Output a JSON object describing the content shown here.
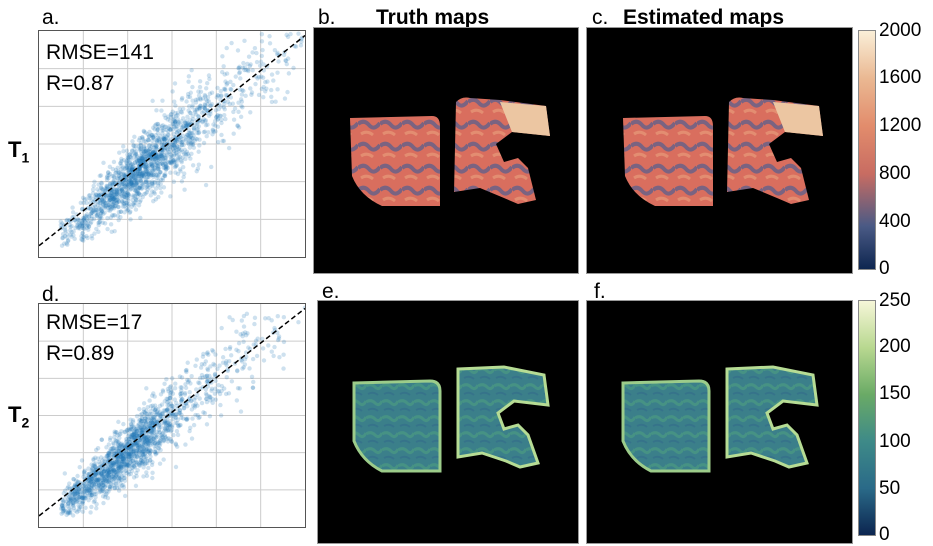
{
  "figure": {
    "column_titles": {
      "truth": "Truth maps",
      "estimated": "Estimated maps"
    },
    "row_labels": {
      "t1": {
        "main": "T",
        "sub": "1"
      },
      "t2": {
        "main": "T",
        "sub": "2"
      }
    },
    "panel_labels": {
      "a": "a.",
      "b": "b.",
      "c": "c.",
      "d": "d.",
      "e": "e.",
      "f": "f."
    },
    "colors": {
      "scatter_point": "#1f77b4",
      "grid": "#cccccc",
      "line": "#000000"
    }
  },
  "chart_data": [
    {
      "type": "scatter",
      "panel": "a",
      "annotations": [
        "RMSE=141",
        "R=0.87"
      ],
      "xlim": [
        0,
        2000
      ],
      "ylim": [
        0,
        2000
      ],
      "identity_line": true,
      "grid": true,
      "point_cloud": {
        "center": [
          800,
          800
        ],
        "correlation": 0.87,
        "rmse": 141
      }
    },
    {
      "type": "heatmap",
      "panel": "b",
      "title": "Truth maps",
      "colormap": "dark-blue to salmon to cream",
      "colorbar": {
        "ticks": [
          0,
          400,
          800,
          1200,
          1600,
          2000
        ],
        "range": [
          0,
          2000
        ]
      }
    },
    {
      "type": "heatmap",
      "panel": "c",
      "title": "Estimated maps",
      "colormap": "dark-blue to salmon to cream",
      "colorbar": {
        "ticks": [
          0,
          400,
          800,
          1200,
          1600,
          2000
        ],
        "range": [
          0,
          2000
        ]
      }
    },
    {
      "type": "scatter",
      "panel": "d",
      "annotations": [
        "RMSE=17",
        "R=0.89"
      ],
      "xlim": [
        0,
        250
      ],
      "ylim": [
        0,
        250
      ],
      "identity_line": true,
      "grid": true,
      "point_cloud": {
        "center": [
          80,
          80
        ],
        "correlation": 0.89,
        "rmse": 17
      }
    },
    {
      "type": "heatmap",
      "panel": "e",
      "colormap": "dark-blue to green to cream",
      "colorbar": {
        "ticks": [
          0,
          50,
          100,
          150,
          200,
          250
        ],
        "range": [
          0,
          250
        ]
      }
    },
    {
      "type": "heatmap",
      "panel": "f",
      "colormap": "dark-blue to green to cream",
      "colorbar": {
        "ticks": [
          0,
          50,
          100,
          150,
          200,
          250
        ],
        "range": [
          0,
          250
        ]
      }
    }
  ]
}
